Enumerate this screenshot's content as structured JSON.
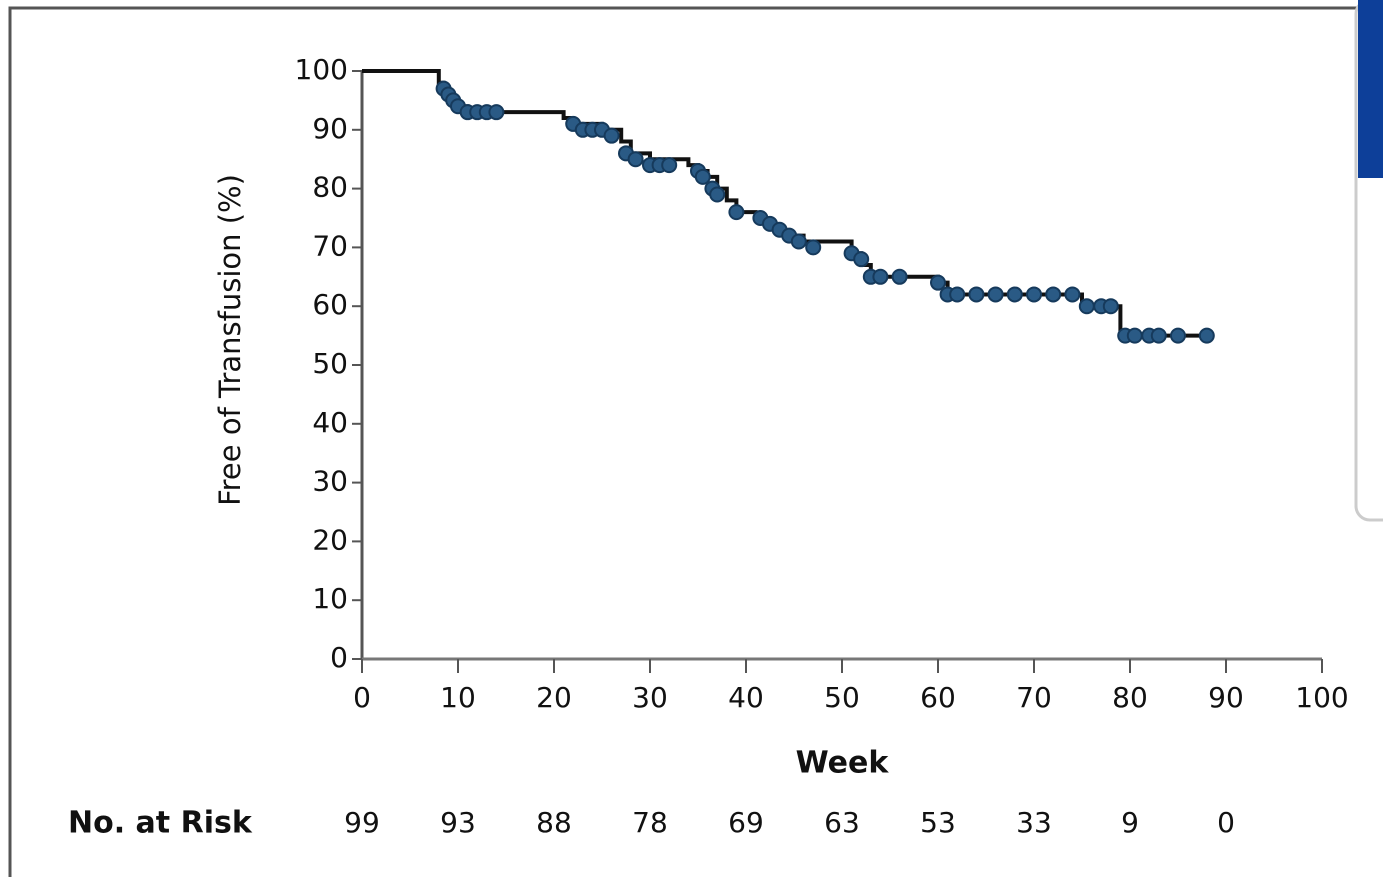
{
  "chart_data": {
    "type": "step",
    "ylabel": "Free of Transfusion (%)",
    "xlabel": "Week",
    "xlim": [
      0,
      100
    ],
    "ylim": [
      0,
      100
    ],
    "xticks": [
      0,
      10,
      20,
      30,
      40,
      50,
      60,
      70,
      80,
      90,
      100
    ],
    "yticks": [
      0,
      10,
      20,
      30,
      40,
      50,
      60,
      70,
      80,
      90,
      100
    ],
    "color": "#111111",
    "x": [
      0,
      8,
      8.5,
      9,
      9.5,
      10,
      11,
      21,
      22,
      25,
      27,
      28,
      30,
      34,
      35,
      36,
      37,
      38,
      39,
      41,
      42,
      43,
      44,
      46,
      51,
      52,
      53,
      60,
      61,
      75,
      79,
      88
    ],
    "values": [
      100,
      98,
      97,
      96,
      95,
      94,
      93,
      92,
      91,
      90,
      88,
      86,
      85,
      84,
      83,
      82,
      80,
      78,
      76,
      75,
      74,
      73,
      72,
      71,
      69,
      67,
      65,
      64,
      62,
      60,
      55,
      55
    ],
    "marker_color": "#2a5a85",
    "censor_x": [
      8.5,
      9,
      9.5,
      10,
      11,
      12,
      13,
      14,
      22,
      23,
      24,
      25,
      26,
      27.5,
      28.5,
      30,
      31,
      32,
      35,
      35.5,
      36.5,
      37,
      39,
      41.5,
      42.5,
      43.5,
      44.5,
      45.5,
      47,
      51,
      52,
      53,
      54,
      56,
      60,
      61,
      62,
      64,
      66,
      68,
      70,
      72,
      74,
      75.5,
      77,
      78,
      79.5,
      80.5,
      82,
      83,
      85,
      88
    ],
    "censor_values": [
      97,
      96,
      95,
      94,
      93,
      93,
      93,
      93,
      91,
      90,
      90,
      90,
      89,
      86,
      85,
      84,
      84,
      84,
      83,
      82,
      80,
      79,
      76,
      75,
      74,
      73,
      72,
      71,
      70,
      69,
      68,
      65,
      65,
      65,
      64,
      62,
      62,
      62,
      62,
      62,
      62,
      62,
      62,
      60,
      60,
      60,
      55,
      55,
      55,
      55,
      55,
      55
    ],
    "risk_label": "No. at Risk",
    "risk_x": [
      0,
      10,
      20,
      30,
      40,
      50,
      60,
      70,
      80,
      90
    ],
    "risk_values": [
      99,
      93,
      88,
      78,
      69,
      63,
      53,
      33,
      9,
      0
    ]
  }
}
